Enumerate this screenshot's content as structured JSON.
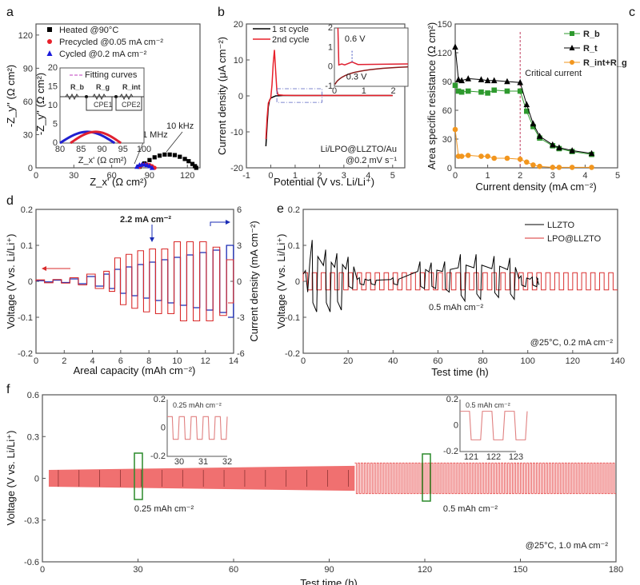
{
  "chart_data": [
    {
      "id": "a",
      "type": "scatter",
      "panel_label": "a",
      "xlabel": "Z_x' (Ω cm²)",
      "ylabel": "-Z_y'' (Ω cm²)",
      "xlim": [
        0,
        130
      ],
      "ylim": [
        0,
        130
      ],
      "xticks": [
        0,
        30,
        60,
        90,
        120
      ],
      "yticks": [
        0,
        30,
        60,
        90,
        120
      ],
      "legend": [
        "Heated @90°C",
        "Precycled @0.05 mA cm⁻²",
        "Cycled @0.2 mA cm⁻²"
      ],
      "legend_position": "top-left",
      "annotations": [
        "1 MHz",
        "10 kHz"
      ],
      "series": [
        {
          "name": "Heated @90°C",
          "color": "#000000",
          "marker": "square",
          "x": [
            82,
            86,
            90,
            94,
            98,
            102,
            106,
            110,
            114,
            118,
            121,
            124,
            126,
            127
          ],
          "y": [
            1,
            4,
            7,
            9.5,
            11,
            12,
            12,
            11.5,
            10,
            8,
            6,
            3.5,
            1.5,
            0
          ]
        },
        {
          "name": "Precycled @0.05 mA cm⁻²",
          "color": "#e8202a",
          "marker": "circle",
          "x": [
            82,
            84,
            86,
            88,
            90,
            92,
            94
          ],
          "y": [
            1,
            2.5,
            3,
            3,
            2.5,
            1.5,
            0
          ]
        },
        {
          "name": "Cycled @0.2 mA cm⁻²",
          "color": "#1a1adb",
          "marker": "triangle",
          "x": [
            80,
            82,
            84,
            86,
            88,
            90,
            92
          ],
          "y": [
            1,
            2.5,
            3,
            3,
            2.5,
            1.5,
            0
          ]
        }
      ],
      "inset": {
        "xlim": [
          80,
          100
        ],
        "ylim": [
          0,
          20
        ],
        "xticks": [
          80,
          85,
          90,
          95,
          100
        ],
        "yticks": [
          0,
          5,
          10,
          15,
          20
        ],
        "xlabel": "Z_x' (Ω cm²)",
        "ylabel": "-Z_y'' (Ω cm²)",
        "legend": "Fitting curves",
        "circuit": [
          "R_b",
          "R_g",
          "R_int",
          "CPE1",
          "CPE2"
        ]
      }
    },
    {
      "id": "b",
      "type": "line",
      "panel_label": "b",
      "xlabel": "Potential (V vs. Li/Li⁺)",
      "ylabel": "Current density (μA cm⁻²)",
      "xlim": [
        -1,
        5.5
      ],
      "ylim": [
        -20,
        20
      ],
      "xticks": [
        -1,
        0,
        1,
        2,
        3,
        4,
        5
      ],
      "yticks": [
        -20,
        -10,
        0,
        10,
        20
      ],
      "legend": [
        "1 st cycle",
        "2nd cycle"
      ],
      "legend_position": "top-left",
      "annotations": [
        "Li/LPO@LLZTO/Au",
        "@0.2 mV s⁻¹"
      ],
      "series": [
        {
          "name": "1 st cycle",
          "color": "#000000",
          "x": [
            -0.2,
            -0.15,
            -0.1,
            -0.05,
            0,
            0.1,
            0.2,
            0.5,
            1,
            2,
            3,
            4,
            5
          ],
          "y": [
            -14,
            -8,
            -3,
            -1.2,
            -0.6,
            -0.3,
            0,
            0.1,
            0.1,
            0.1,
            0.1,
            0.1,
            0.1
          ]
        },
        {
          "name": "2nd cycle",
          "color": "#e8202a",
          "x": [
            -0.2,
            -0.15,
            -0.1,
            0,
            0.05,
            0.1,
            0.15,
            0.2,
            0.25,
            0.3,
            0.5,
            1,
            2,
            3,
            4,
            5
          ],
          "y": [
            -12,
            -6,
            -2,
            -0.5,
            3,
            9,
            12.8,
            7,
            1.5,
            0.3,
            0.2,
            0.1,
            0.1,
            0.1,
            0.1,
            0.1
          ]
        }
      ],
      "inset": {
        "xlim": [
          0,
          2.5
        ],
        "ylim": [
          -1,
          2
        ],
        "xticks": [
          0,
          1,
          2
        ],
        "yticks": [
          -1,
          0,
          1,
          2
        ],
        "annotations": [
          "0.6 V",
          "0.3 V"
        ]
      }
    },
    {
      "id": "c",
      "type": "line",
      "panel_label": "c",
      "xlabel": "Current density (mA cm⁻²)",
      "ylabel": "Area specific resistance (Ω cm²)",
      "xlim": [
        0,
        5
      ],
      "ylim": [
        0,
        150
      ],
      "xticks": [
        0,
        1,
        2,
        3,
        4,
        5
      ],
      "yticks": [
        0,
        30,
        60,
        90,
        120,
        150
      ],
      "legend": [
        "R_b",
        "R_t",
        "R_int+R_g"
      ],
      "legend_position": "top-right",
      "annotations": [
        "Critical current"
      ],
      "critical_x": 2.0,
      "x": [
        0,
        0.1,
        0.2,
        0.4,
        0.8,
        1.0,
        1.2,
        1.6,
        2.0,
        2.2,
        2.4,
        2.6,
        3.0,
        3.2,
        3.6,
        4.2
      ],
      "series": [
        {
          "name": "R_b",
          "color": "#2e9a2e",
          "marker": "square",
          "values": [
            86,
            80,
            79,
            80,
            79,
            78,
            81,
            80,
            80,
            59,
            43,
            31,
            23,
            20,
            17,
            14
          ]
        },
        {
          "name": "R_t",
          "color": "#000000",
          "marker": "triangle",
          "values": [
            126,
            92,
            91,
            93,
            92,
            91,
            91,
            90,
            89,
            66,
            46,
            33,
            24,
            21,
            18,
            15
          ]
        },
        {
          "name": "R_int+R_g",
          "color": "#f2961e",
          "marker": "circle",
          "values": [
            40,
            12,
            12,
            13,
            12,
            12,
            10,
            10,
            9,
            6,
            3,
            1.5,
            0.5,
            0.5,
            0.5,
            0.5
          ]
        }
      ]
    },
    {
      "id": "d",
      "type": "line",
      "panel_label": "d",
      "xlabel": "Areal capacity (mAh cm⁻²)",
      "ylabel": "Voltage (V vs. Li/Li⁺)",
      "y2label": "Current density (mA cm⁻²)",
      "xlim": [
        0,
        14
      ],
      "ylim": [
        -0.2,
        0.2
      ],
      "y2lim": [
        -6,
        6
      ],
      "xticks": [
        0,
        2,
        4,
        6,
        8,
        10,
        12,
        14
      ],
      "yticks": [
        -0.2,
        -0.1,
        0.0,
        0.1,
        0.2
      ],
      "y2ticks": [
        -6,
        -3,
        0,
        3,
        6
      ],
      "annotations": [
        "2.2 mA cm⁻²"
      ],
      "steps_current": [
        0.05,
        0.1,
        0.2,
        0.4,
        0.6,
        1.0,
        1.2,
        1.4,
        1.6,
        1.8,
        2.0,
        2.2,
        2.4,
        2.6,
        3.0,
        3.2,
        3.6,
        4.2
      ],
      "series": [
        {
          "name": "Voltage",
          "axis": "left",
          "color": "#d92b2b",
          "step_amplitude": [
            0.004,
            0.005,
            0.01,
            0.02,
            0.028,
            0.065,
            0.075,
            0.085,
            0.09,
            0.09,
            0.11,
            0.11,
            0.11,
            0.095,
            0.06,
            0.055,
            0.055,
            0.05
          ]
        },
        {
          "name": "Current density",
          "axis": "right",
          "color": "#1a2bb5",
          "step_amplitude": [
            0.05,
            0.1,
            0.2,
            0.4,
            0.6,
            1.0,
            1.2,
            1.4,
            1.6,
            1.8,
            2.0,
            2.2,
            2.4,
            2.6,
            3.0,
            3.2,
            3.6,
            4.2
          ]
        }
      ]
    },
    {
      "id": "e",
      "type": "line",
      "panel_label": "e",
      "xlabel": "Test time (h)",
      "ylabel": "Voltage (V vs. Li/Li⁺)",
      "xlim": [
        0,
        140
      ],
      "ylim": [
        -0.2,
        0.2
      ],
      "xticks": [
        0,
        20,
        40,
        60,
        80,
        100,
        120,
        140
      ],
      "yticks": [
        -0.2,
        -0.1,
        0.0,
        0.1,
        0.2
      ],
      "legend": [
        "LLZTO",
        "LPO@LLZTO"
      ],
      "legend_position": "top-right",
      "annotations": [
        "0.5 mAh cm⁻²",
        "@25°C, 0.2 mA cm⁻²"
      ],
      "series": [
        {
          "name": "LLZTO",
          "color": "#000000",
          "cycle_peaks": [
            [
              4,
              0.115,
              -0.085
            ],
            [
              10,
              0.088,
              -0.085
            ],
            [
              15,
              0.078,
              -0.08
            ],
            [
              20,
              0.068,
              -0.02
            ],
            [
              25,
              0.01,
              -0.01
            ],
            [
              30,
              0.005,
              -0.01
            ],
            [
              40,
              0.01,
              -0.01
            ],
            [
              52,
              0.055,
              -0.02
            ],
            [
              57,
              0.052,
              -0.02
            ],
            [
              63,
              0.055,
              -0.03
            ],
            [
              70,
              0.075,
              -0.055
            ],
            [
              77,
              0.075,
              -0.05
            ],
            [
              85,
              0.07,
              -0.045
            ],
            [
              92,
              0.065,
              -0.05
            ],
            [
              97,
              0.015,
              -0.015
            ],
            [
              102,
              0.012,
              -0.015
            ]
          ]
        },
        {
          "name": "LPO@LLZTO",
          "color": "#d93030",
          "amplitude": 0.024,
          "period_h": 4
        }
      ]
    },
    {
      "id": "f",
      "type": "line",
      "panel_label": "f",
      "xlabel": "Test time (h)",
      "ylabel": "Voltage (V vs. Li/Li⁺)",
      "xlim": [
        0,
        180
      ],
      "ylim": [
        -0.6,
        0.6
      ],
      "xticks": [
        0,
        30,
        60,
        90,
        120,
        150,
        180
      ],
      "yticks": [
        -0.6,
        -0.3,
        0.0,
        0.3,
        0.6
      ],
      "annotations": [
        "0.25 mAh cm⁻²",
        "0.5 mAh cm⁻²",
        "@25°C, 1.0 mA cm⁻²"
      ],
      "series": [
        {
          "name": "Voltage",
          "color": "#e85050",
          "segments": [
            {
              "x_range": [
                2,
                98
              ],
              "amplitude_start": 0.06,
              "amplitude_end": 0.09,
              "period_h": 0.5
            },
            {
              "x_range": [
                98,
                180
              ],
              "amplitude_start": 0.11,
              "amplitude_end": 0.11,
              "period_h": 1.0
            }
          ]
        }
      ],
      "insets": [
        {
          "xlim": [
            29.5,
            32
          ],
          "ylim": [
            -0.2,
            0.2
          ],
          "xticks": [
            30,
            31,
            32
          ],
          "yticks": [
            -0.2,
            0.0,
            0.2
          ],
          "label": "0.25 mAh cm⁻²",
          "amplitude": 0.08,
          "period": 0.5,
          "highlight_x": 30
        },
        {
          "xlim": [
            120.5,
            123
          ],
          "ylim": [
            -0.2,
            0.2
          ],
          "xticks": [
            121,
            122,
            123
          ],
          "yticks": [
            -0.2,
            0.0,
            0.2
          ],
          "label": "0.5 mAh cm⁻²",
          "amplitude": 0.11,
          "period": 1.0,
          "highlight_x": 120.5
        }
      ]
    }
  ]
}
